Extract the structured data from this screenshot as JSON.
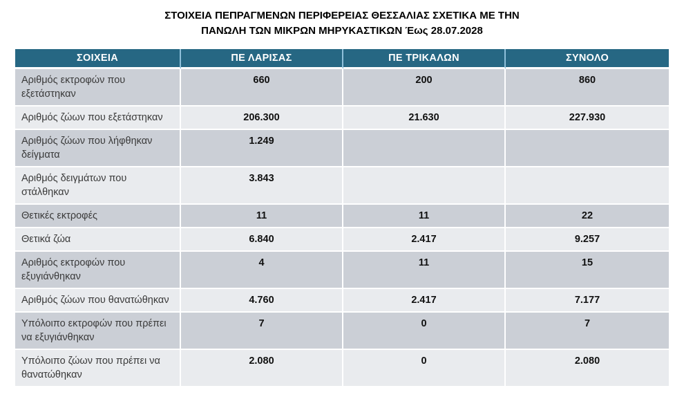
{
  "title": {
    "line1": "ΣΤΟΙΧΕΙΑ ΠΕΠΡΑΓΜΕΝΩΝ ΠΕΡΙΦΕΡΕΙΑΣ ΘΕΣΣΑΛΙΑΣ ΣΧΕΤΙΚΑ ΜΕ ΤΗΝ",
    "line2": "ΠΑΝΩΛΗ ΤΩΝ ΜΙΚΡΩΝ ΜΗΡΥΚΑΣΤΙΚΩΝ Έως 28.07.2028"
  },
  "table": {
    "headers": [
      "ΣΟΙΧΕΙΑ",
      "ΠΕ ΛΑΡΙΣΑΣ",
      "ΠΕ ΤΡΙΚΑΛΩΝ",
      "ΣΥΝΟΛΟ"
    ],
    "rows": [
      {
        "label": "Αριθμός εκτροφών που εξετάστηκαν",
        "larisa": "660",
        "trikala": "200",
        "total": "860"
      },
      {
        "label": "Αριθμός ζώων που εξετάστηκαν",
        "larisa": "206.300",
        "trikala": "21.630",
        "total": "227.930"
      },
      {
        "label": "Αριθμός ζώων που λήφθηκαν δείγματα",
        "larisa": "1.249",
        "trikala": "",
        "total": ""
      },
      {
        "label": "Αριθμός δειγμάτων που στάλθηκαν",
        "larisa": "3.843",
        "trikala": "",
        "total": ""
      },
      {
        "label": "Θετικές εκτροφές",
        "larisa": "11",
        "trikala": "11",
        "total": "22"
      },
      {
        "label": "Θετικά ζώα",
        "larisa": "6.840",
        "trikala": "2.417",
        "total": "9.257"
      },
      {
        "label": "Αριθμός εκτροφών που εξυγιάνθηκαν",
        "larisa": "4",
        "trikala": "11",
        "total": "15"
      },
      {
        "label": "Αριθμός ζώων που θανατώθηκαν",
        "larisa": "4.760",
        "trikala": "2.417",
        "total": "7.177"
      },
      {
        "label": "Υπόλοιπο  εκτροφών που πρέπει να  εξυγιάνθηκαν",
        "larisa": "7",
        "trikala": "0",
        "total": "7"
      },
      {
        "label": "Υπόλοιπο ζώων που πρέπει να θανατώθηκαν",
        "larisa": "2.080",
        "trikala": "0",
        "total": "2.080"
      }
    ]
  },
  "colors": {
    "header_bg": "#266783",
    "header_divider": "#8FC0DA",
    "row_band_dark": "#CBCFD6",
    "row_band_light": "#E9EBEE",
    "label_text": "#3a3a3a",
    "number_text": "#111111"
  }
}
